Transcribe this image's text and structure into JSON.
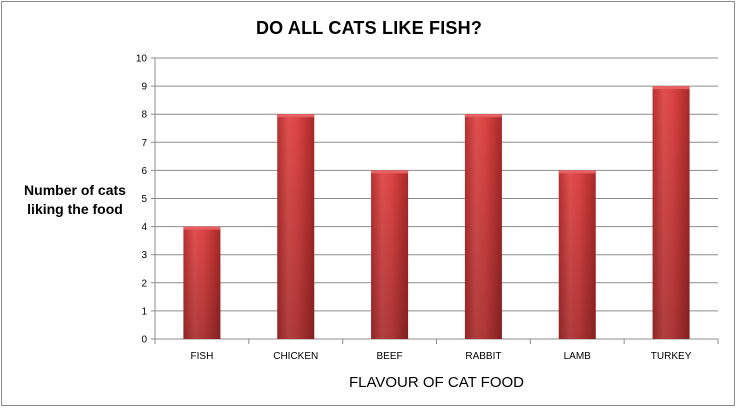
{
  "chart_data": {
    "type": "bar",
    "title": "DO ALL CATS LIKE FISH?",
    "xlabel": "FLAVOUR OF CAT FOOD",
    "ylabel_lines": [
      "Number of cats",
      "liking the food"
    ],
    "categories": [
      "FISH",
      "CHICKEN",
      "BEEF",
      "RABBIT",
      "LAMB",
      "TURKEY"
    ],
    "values": [
      4,
      8,
      6,
      8,
      6,
      9
    ],
    "ylim": [
      0,
      10
    ],
    "yticks": [
      0,
      1,
      2,
      3,
      4,
      5,
      6,
      7,
      8,
      9,
      10
    ],
    "grid": true,
    "legend": "none",
    "colors": {
      "bar": "#d94040",
      "bar_dark": "#a82828",
      "bar_light": "#e86060",
      "grid": "#8c8c8c",
      "axis": "#8c8c8c"
    }
  }
}
